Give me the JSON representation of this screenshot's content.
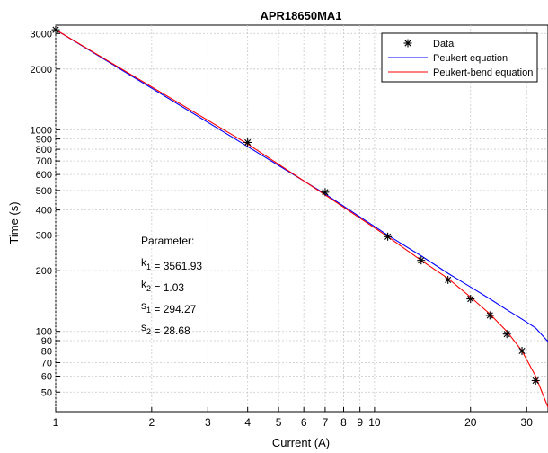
{
  "chart_data": {
    "type": "line",
    "title": "APR18650MA1",
    "xlabel": "Current (A)",
    "ylabel": "Time (s)",
    "xscale": "log",
    "yscale": "log",
    "xlim": [
      1,
      35
    ],
    "ylim": [
      40,
      3300
    ],
    "grid": true,
    "legend_position": "top-right",
    "x_ticks": [
      1,
      2,
      3,
      4,
      5,
      6,
      7,
      8,
      9,
      10,
      20,
      30
    ],
    "x_tick_labels": [
      "1",
      "2",
      "3",
      "4",
      "5",
      "6",
      "7",
      "8",
      "9",
      "10",
      "20",
      "30"
    ],
    "y_ticks": [
      50,
      60,
      70,
      80,
      90,
      100,
      200,
      300,
      400,
      500,
      600,
      700,
      800,
      900,
      1000,
      2000,
      3000
    ],
    "y_tick_labels": [
      "50",
      "60",
      "70",
      "80",
      "90",
      "100",
      "200",
      "300",
      "400",
      "500",
      "600",
      "700",
      "800",
      "900",
      "1000",
      "2000",
      "3000"
    ],
    "series": [
      {
        "name": "Data",
        "kind": "markers",
        "marker": "*",
        "color": "#000000",
        "x": [
          1,
          4,
          7,
          11,
          14,
          17,
          20,
          23,
          26,
          29,
          32
        ],
        "y": [
          3130,
          865,
          490,
          295,
          225,
          180,
          145,
          120,
          97,
          80,
          57
        ]
      },
      {
        "name": "Peukert equation",
        "kind": "line",
        "color": "#0000ff",
        "x": [
          1,
          4,
          7,
          11,
          14,
          17,
          20,
          23,
          26,
          29,
          32,
          35
        ],
        "y": [
          3130,
          825,
          480,
          300,
          237,
          194,
          166,
          145,
          128,
          115,
          104,
          89
        ]
      },
      {
        "name": "Peukert-bend equation",
        "kind": "line",
        "color": "#ff0000",
        "x": [
          1,
          4,
          7,
          11,
          14,
          17,
          20,
          23,
          26,
          29,
          32,
          35
        ],
        "y": [
          3130,
          850,
          475,
          295,
          225,
          183,
          148,
          122,
          100,
          80,
          60,
          42
        ]
      }
    ],
    "annotations": [
      "Parameter:",
      "k₁ = 3561.93",
      "k₂ = 1.03",
      "s₁ = 294.27",
      "s₂ = 28.68"
    ]
  }
}
